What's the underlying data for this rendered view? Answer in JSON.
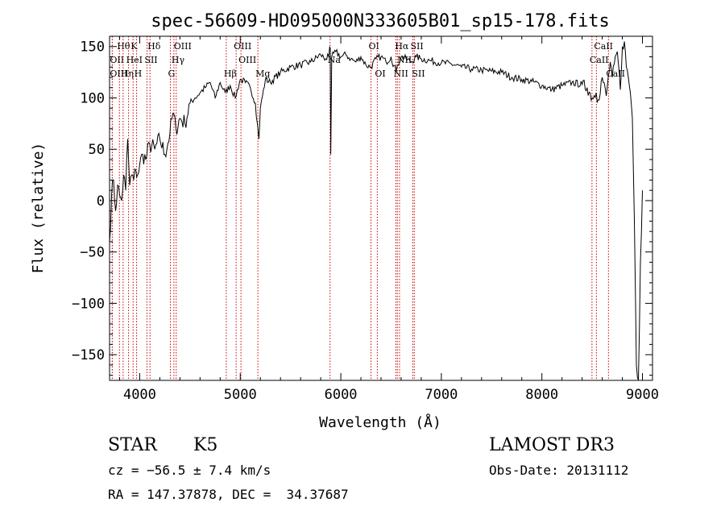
{
  "chart_data": {
    "type": "line",
    "title": "spec-56609-HD095000N333605B01_sp15-178.fits",
    "xlabel": "Wavelength (Å)",
    "ylabel": "Flux (relative)",
    "xlim": [
      3700,
      9100
    ],
    "ylim": [
      -175,
      160
    ],
    "x_ticks": [
      4000,
      5000,
      6000,
      7000,
      8000,
      9000
    ],
    "y_ticks": [
      -150,
      -100,
      -50,
      0,
      50,
      100,
      150
    ],
    "x_tick_labels": [
      "4000",
      "5000",
      "6000",
      "7000",
      "8000",
      "9000"
    ],
    "y_tick_labels": [
      "−150",
      "−100",
      "−50",
      "0",
      "50",
      "100",
      "150"
    ],
    "grid": false,
    "spectrum": {
      "x": [
        3700,
        3720,
        3740,
        3760,
        3780,
        3800,
        3820,
        3840,
        3860,
        3880,
        3900,
        3920,
        3940,
        3960,
        3980,
        4000,
        4030,
        4060,
        4100,
        4150,
        4200,
        4250,
        4300,
        4330,
        4360,
        4400,
        4450,
        4500,
        4550,
        4600,
        4650,
        4700,
        4750,
        4800,
        4850,
        4900,
        4950,
        5000,
        5050,
        5100,
        5150,
        5170,
        5185,
        5200,
        5250,
        5300,
        5400,
        5500,
        5600,
        5700,
        5800,
        5850,
        5880,
        5890,
        5895,
        5900,
        5910,
        5950,
        6000,
        6050,
        6100,
        6150,
        6200,
        6250,
        6300,
        6350,
        6400,
        6450,
        6500,
        6550,
        6563,
        6600,
        6650,
        6700,
        6750,
        6800,
        6900,
        7000,
        7100,
        7200,
        7300,
        7400,
        7500,
        7600,
        7700,
        7800,
        7900,
        8000,
        8100,
        8200,
        8300,
        8400,
        8450,
        8500,
        8540,
        8560,
        8600,
        8640,
        8680,
        8700,
        8750,
        8780,
        8800,
        8820,
        8840,
        8860,
        8880,
        8900,
        8920,
        8940,
        8960,
        8980,
        9000
      ],
      "y": [
        -40,
        5,
        20,
        -10,
        15,
        5,
        0,
        25,
        10,
        60,
        15,
        25,
        20,
        30,
        25,
        35,
        45,
        40,
        55,
        50,
        60,
        45,
        65,
        85,
        70,
        80,
        75,
        95,
        100,
        105,
        110,
        115,
        100,
        115,
        105,
        112,
        100,
        118,
        115,
        110,
        95,
        75,
        60,
        90,
        118,
        115,
        125,
        130,
        132,
        135,
        142,
        138,
        140,
        150,
        148,
        45,
        140,
        145,
        140,
        142,
        138,
        135,
        140,
        132,
        130,
        138,
        140,
        135,
        140,
        125,
        132,
        140,
        138,
        135,
        140,
        138,
        136,
        134,
        133,
        130,
        128,
        127,
        126,
        125,
        120,
        118,
        116,
        112,
        108,
        112,
        115,
        113,
        110,
        100,
        105,
        98,
        120,
        102,
        135,
        120,
        145,
        108,
        150,
        155,
        130,
        120,
        105,
        80,
        -20,
        -160,
        -175,
        -60,
        10
      ]
    },
    "emission_lines": [
      {
        "label": "Hθ",
        "x": 3798,
        "row": 0
      },
      {
        "label": "K",
        "x": 3934,
        "row": 0
      },
      {
        "label": "Hδ",
        "x": 4102,
        "row": 0
      },
      {
        "label": "OIII",
        "x": 4363,
        "row": 0
      },
      {
        "label": "OIII",
        "x": 4959,
        "row": 0
      },
      {
        "label": "OI",
        "x": 6300,
        "row": 0
      },
      {
        "label": "Hα",
        "x": 6563,
        "row": 0
      },
      {
        "label": "SII",
        "x": 6716,
        "row": 0
      },
      {
        "label": "CaII",
        "x": 8542,
        "row": 0
      },
      {
        "label": "OII",
        "x": 3727,
        "row": 1
      },
      {
        "label": "HeI",
        "x": 3889,
        "row": 1
      },
      {
        "label": "SII",
        "x": 4072,
        "row": 1
      },
      {
        "label": "Hγ",
        "x": 4340,
        "row": 1
      },
      {
        "label": "OIII",
        "x": 5007,
        "row": 1
      },
      {
        "label": "Na",
        "x": 5893,
        "row": 1
      },
      {
        "label": "NII",
        "x": 6584,
        "row": 1
      },
      {
        "label": "CaII",
        "x": 8498,
        "row": 1
      },
      {
        "label": "OIII",
        "x": 3727,
        "row": 2
      },
      {
        "label": "Hη",
        "x": 3835,
        "row": 2
      },
      {
        "label": "H",
        "x": 3969,
        "row": 2
      },
      {
        "label": "G",
        "x": 4305,
        "row": 2
      },
      {
        "label": "Hβ",
        "x": 4861,
        "row": 2
      },
      {
        "label": "Mg",
        "x": 5175,
        "row": 2
      },
      {
        "label": "OI",
        "x": 6363,
        "row": 2
      },
      {
        "label": "NII",
        "x": 6548,
        "row": 2
      },
      {
        "label": "SII",
        "x": 6731,
        "row": 2
      },
      {
        "label": "CaII",
        "x": 8662,
        "row": 2
      }
    ]
  },
  "info": {
    "object_class": "STAR",
    "subclass": "K5",
    "survey": "LAMOST DR3",
    "redshift_line": "cz = −56.5 ± 7.4 km/s",
    "obs_date": "Obs-Date: 20131112",
    "coords": "RA = 147.37878, DEC =  34.37687"
  },
  "colors": {
    "spectrum": "#000000",
    "line_markers": "#cc0000",
    "axes": "#000000",
    "background": "#ffffff"
  }
}
